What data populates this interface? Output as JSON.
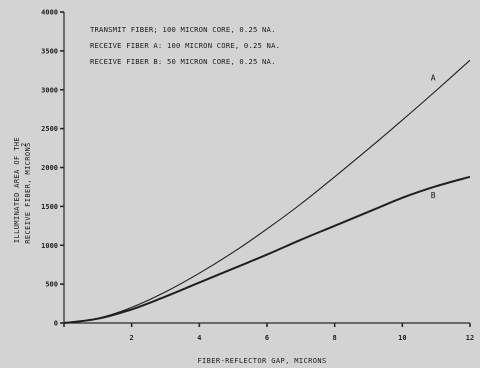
{
  "chart_data": {
    "type": "line",
    "xlabel": "FIBER-REFLECTOR GAP, MICRONS",
    "ylabel_line1": "ILLUMINATED AREA OF THE",
    "ylabel_line2": "RECEIVE FIBER, MICRONS",
    "ylabel_superscript": "2",
    "xlim": [
      0,
      12
    ],
    "ylim": [
      0,
      4000
    ],
    "x_ticks": [
      {
        "value": 0,
        "label": ""
      },
      {
        "value": 2,
        "label": "2"
      },
      {
        "value": 4,
        "label": "4"
      },
      {
        "value": 6,
        "label": "6"
      },
      {
        "value": 8,
        "label": "8"
      },
      {
        "value": 10,
        "label": "10"
      },
      {
        "value": 12,
        "label": "12"
      }
    ],
    "y_ticks": [
      {
        "value": 0,
        "label": "0"
      },
      {
        "value": 500,
        "label": "500"
      },
      {
        "value": 1000,
        "label": "1000"
      },
      {
        "value": 1500,
        "label": "1500"
      },
      {
        "value": 2000,
        "label": "2000"
      },
      {
        "value": 2500,
        "label": "2500"
      },
      {
        "value": 3000,
        "label": "3000"
      },
      {
        "value": 3500,
        "label": "3500"
      },
      {
        "value": 4000,
        "label": "4000"
      }
    ],
    "annotations": [
      "TRANSMIT FIBER; 100 MICRON CORE, 0.25 NA.",
      "RECEIVE FIBER A: 100 MICRON CORE, 0.25 NA.",
      "RECEIVE FIBER B: 50 MICRON CORE, 0.25 NA."
    ],
    "series": [
      {
        "name": "A",
        "x": [
          0,
          1,
          2,
          3,
          4,
          5,
          6,
          7,
          8,
          9,
          10,
          11,
          12
        ],
        "y": [
          0,
          60,
          200,
          400,
          640,
          910,
          1210,
          1530,
          1880,
          2240,
          2610,
          2990,
          3380
        ]
      },
      {
        "name": "B",
        "x": [
          0,
          1,
          2,
          3,
          4,
          5,
          6,
          7,
          8,
          9,
          10,
          11,
          12
        ],
        "y": [
          0,
          55,
          175,
          340,
          520,
          700,
          880,
          1070,
          1250,
          1430,
          1610,
          1760,
          1880
        ]
      }
    ],
    "grid": false,
    "colors": {
      "background": "#d3d3d3",
      "line": "#1f1f1f"
    }
  }
}
